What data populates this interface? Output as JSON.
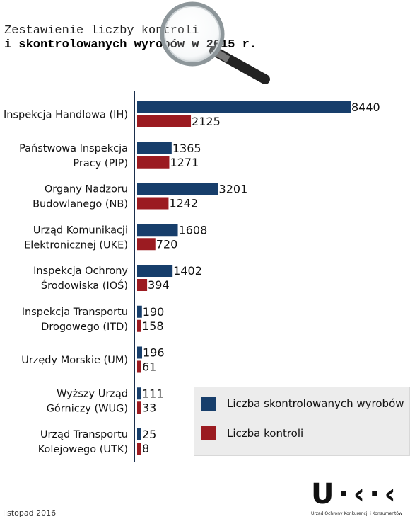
{
  "title_line1": "Zestawienie liczby kontroli",
  "title_line2": "i skontrolowanych wyrobów w 2015 r.",
  "colors": {
    "products": "#173e6b",
    "controls": "#9b1b21"
  },
  "chart_data": {
    "type": "bar",
    "orientation": "horizontal",
    "categories": [
      "Inspekcja Handlowa (IH)",
      "Państwowa Inspekcja Pracy (PIP)",
      "Organy Nadzoru Budowlanego (NB)",
      "Urząd Komunikacji Elektronicznej (UKE)",
      "Inspekcja Ochrony Środowiska (IOŚ)",
      "Inspekcja Transportu Drogowego (ITD)",
      "Urzędy Morskie (UM)",
      "Wyższy Urząd Górniczy (WUG)",
      "Urząd Transportu Kolejowego (UTK)"
    ],
    "category_lines": [
      [
        "Inspekcja Handlowa (IH)"
      ],
      [
        "Państwowa Inspekcja",
        "Pracy (PIP)"
      ],
      [
        "Organy Nadzoru",
        "Budowlanego (NB)"
      ],
      [
        "Urząd Komunikacji",
        "Elektronicznej (UKE)"
      ],
      [
        "Inspekcja Ochrony",
        "Środowiska (IOŚ)"
      ],
      [
        "Inspekcja Transportu",
        "Drogowego (ITD)"
      ],
      [
        "Urzędy Morskie (UM)"
      ],
      [
        "Wyższy Urząd",
        "Górniczy (WUG)"
      ],
      [
        "Urząd Transportu",
        "Kolejowego (UTK)"
      ]
    ],
    "series": [
      {
        "name": "Liczba skontrolowanych wyrobów",
        "values": [
          8440,
          1365,
          3201,
          1608,
          1402,
          190,
          196,
          111,
          25
        ]
      },
      {
        "name": "Liczba kontroli",
        "values": [
          2125,
          1271,
          1242,
          720,
          394,
          158,
          61,
          33,
          8
        ]
      }
    ],
    "xlim": [
      0,
      8440
    ],
    "legend_position": "bottom-right",
    "grid": false
  },
  "footer": "listopad 2016",
  "logo": {
    "mark": "U·K·K",
    "subtitle": "Urząd Ochrony Konkurencji i Konsumentów"
  }
}
